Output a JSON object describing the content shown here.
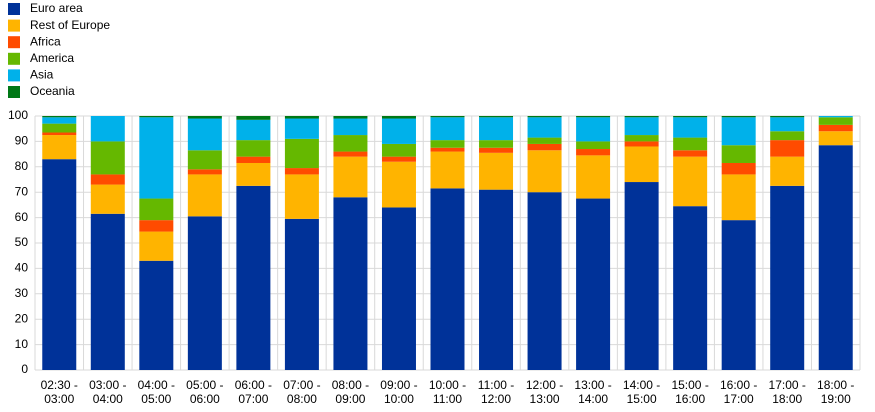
{
  "chart_data": {
    "type": "stacked_bar",
    "categories": [
      "02:30 - 03:00",
      "03:00 - 04:00",
      "04:00 - 05:00",
      "05:00 - 06:00",
      "06:00 - 07:00",
      "07:00 - 08:00",
      "08:00 - 09:00",
      "09:00 - 10:00",
      "10:00 - 11:00",
      "11:00 - 12:00",
      "12:00 - 13:00",
      "13:00 - 14:00",
      "14:00 - 15:00",
      "15:00 - 16:00",
      "16:00 - 17:00",
      "17:00 - 18:00",
      "18:00 - 19:00"
    ],
    "series": [
      {
        "name": "Euro area",
        "color": "#003299",
        "values": [
          83,
          61.5,
          43,
          60.5,
          72.5,
          59.5,
          68,
          64,
          71.5,
          71,
          70,
          67.5,
          74,
          64.5,
          59,
          72.5,
          88.5
        ]
      },
      {
        "name": "Rest of Europe",
        "color": "#ffb400",
        "values": [
          9.5,
          11.5,
          11.5,
          16.5,
          9,
          17.5,
          16,
          18,
          14.5,
          14.5,
          16.5,
          17,
          14,
          19.5,
          18,
          11.5,
          5.5
        ]
      },
      {
        "name": "Africa",
        "color": "#ff4b00",
        "values": [
          1,
          4,
          4.5,
          2,
          2.5,
          2.5,
          2,
          2,
          1.5,
          2,
          2.5,
          2.5,
          2,
          2.5,
          4.5,
          6.5,
          2.5
        ]
      },
      {
        "name": "America",
        "color": "#65b800",
        "values": [
          3.5,
          13,
          8.5,
          7.5,
          6.5,
          11.5,
          6.5,
          5,
          3,
          3,
          2.5,
          3,
          2.5,
          5,
          7,
          3.5,
          3
        ]
      },
      {
        "name": "Asia",
        "color": "#00b1ea",
        "values": [
          2.5,
          10,
          32,
          12.5,
          8,
          8,
          6.5,
          10,
          9,
          9,
          8,
          9.5,
          7,
          8,
          11,
          5.5,
          0.5
        ]
      },
      {
        "name": "Oceania",
        "color": "#007816",
        "values": [
          0.5,
          0,
          0.5,
          1,
          1.5,
          1,
          1,
          1,
          0.5,
          0.5,
          0.5,
          0.5,
          0.5,
          0.5,
          0.5,
          0.5,
          0
        ]
      }
    ],
    "ylim": [
      0,
      100
    ],
    "yticks": [
      0,
      10,
      20,
      30,
      40,
      50,
      60,
      70,
      80,
      90,
      100
    ],
    "grid": true
  }
}
